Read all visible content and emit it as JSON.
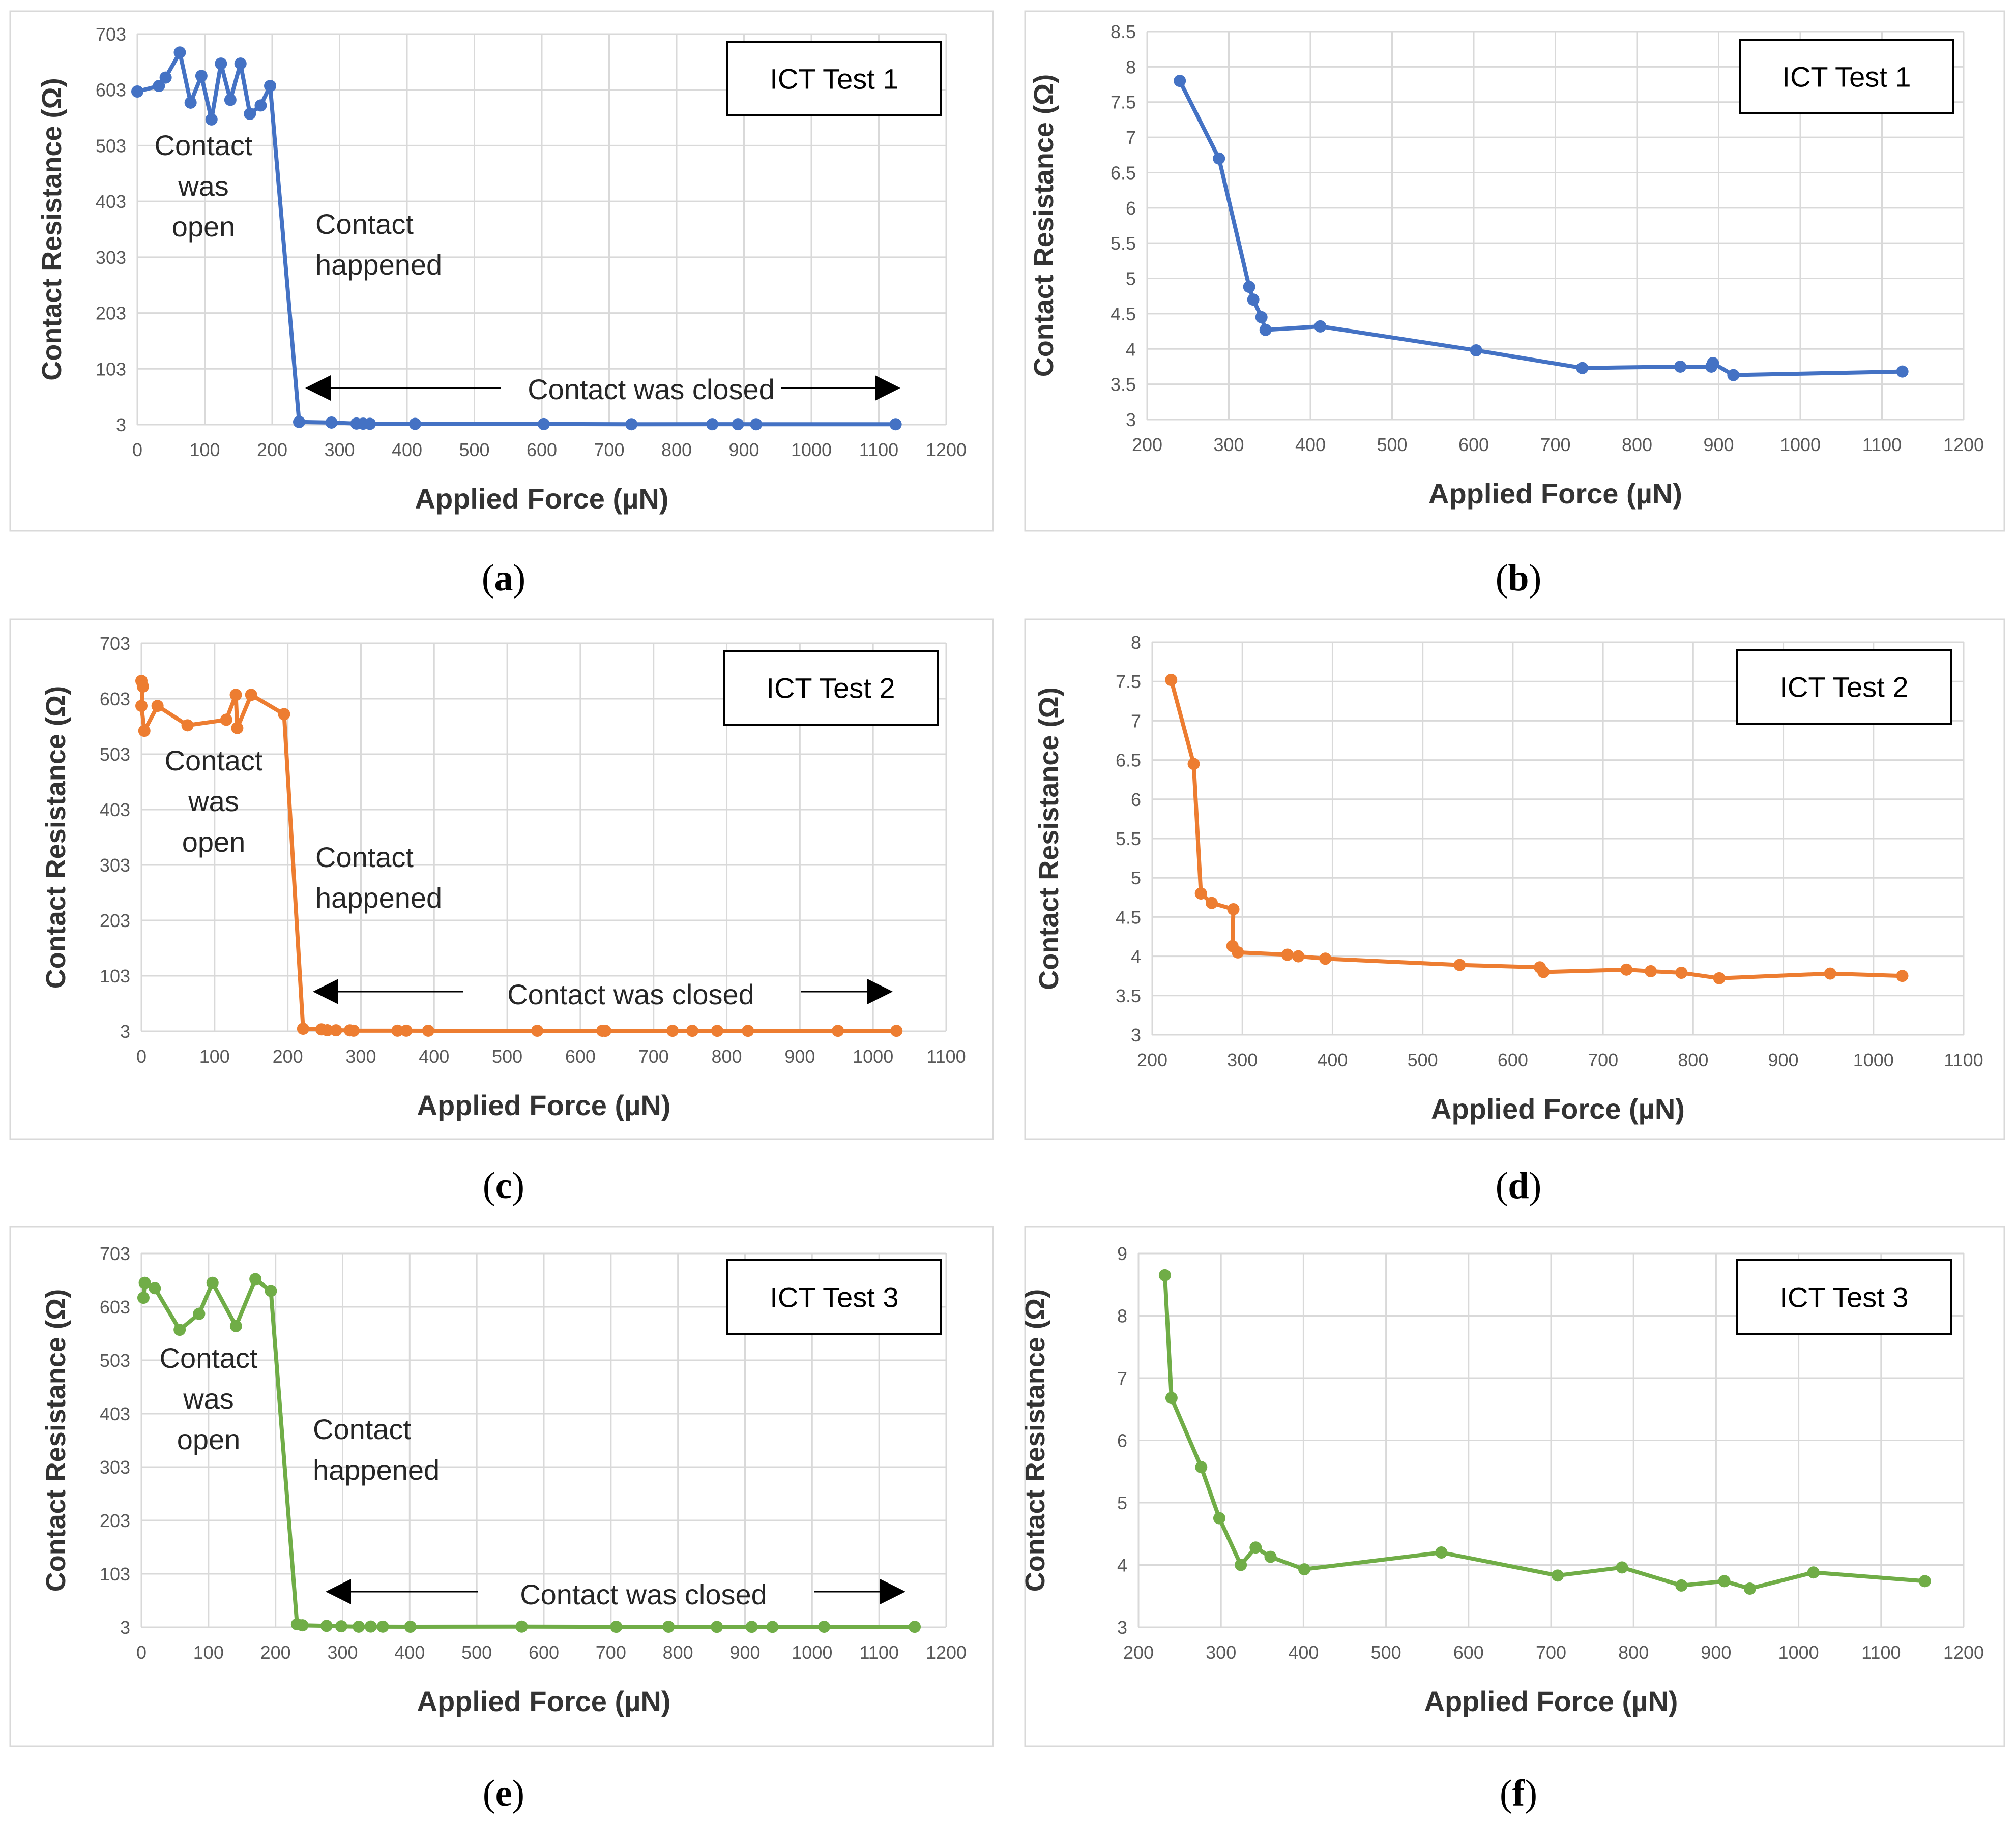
{
  "chart_data": [
    {
      "id": "a",
      "type": "line",
      "color": "#4472C4",
      "title": "ICT Test 1",
      "xlabel": "Applied Force (µN)",
      "ylabel": "Contact Resistance (Ω)",
      "xlim": [
        0,
        1200
      ],
      "ylim": [
        3,
        703
      ],
      "xticks": [
        0,
        100,
        200,
        300,
        400,
        500,
        600,
        700,
        800,
        900,
        1000,
        1100,
        1200
      ],
      "yticks": [
        3,
        103,
        203,
        303,
        403,
        503,
        603,
        703
      ],
      "annotations": {
        "open": [
          "Contact",
          "was",
          "open"
        ],
        "happened": [
          "Contact",
          "happened"
        ],
        "closed": "Contact was closed"
      },
      "x": [
        0,
        32,
        42,
        63,
        79,
        95,
        110,
        124,
        138,
        153,
        167,
        183,
        197,
        240,
        288,
        325,
        335,
        345,
        412,
        603,
        733,
        853,
        891,
        918,
        1125
      ],
      "y": [
        600,
        610,
        625,
        670,
        580,
        628,
        550,
        650,
        585,
        650,
        560,
        575,
        610,
        7.8,
        6.7,
        4.88,
        4.7,
        4.45,
        4.32,
        3.98,
        3.73,
        3.75,
        3.75,
        3.63,
        3.68
      ]
    },
    {
      "id": "b",
      "type": "line",
      "color": "#4472C4",
      "title": "ICT Test 1",
      "xlabel": "Applied Force (µN)",
      "ylabel": "Contact Resistance (Ω)",
      "xlim": [
        200,
        1200
      ],
      "ylim": [
        3,
        8.5
      ],
      "xticks": [
        200,
        300,
        400,
        500,
        600,
        700,
        800,
        900,
        1000,
        1100,
        1200
      ],
      "yticks": [
        3,
        3.5,
        4,
        4.5,
        5,
        5.5,
        6,
        6.5,
        7,
        7.5,
        8,
        8.5
      ],
      "x": [
        240,
        288,
        325,
        330,
        340,
        345,
        412,
        603,
        733,
        853,
        891,
        893,
        918,
        1125
      ],
      "y": [
        7.8,
        6.7,
        4.88,
        4.7,
        4.45,
        4.27,
        4.32,
        3.98,
        3.73,
        3.75,
        3.75,
        3.8,
        3.63,
        3.68
      ]
    },
    {
      "id": "c",
      "type": "line",
      "color": "#ED7D31",
      "title": "ICT Test 2",
      "xlabel": "Applied Force (µN)",
      "ylabel": "Contact Resistance (Ω)",
      "xlim": [
        0,
        1100
      ],
      "ylim": [
        3,
        703
      ],
      "xticks": [
        0,
        100,
        200,
        300,
        400,
        500,
        600,
        700,
        800,
        900,
        1000,
        1100
      ],
      "yticks": [
        3,
        103,
        203,
        303,
        403,
        503,
        603,
        703
      ],
      "annotations": {
        "open": [
          "Contact",
          "was",
          "open"
        ],
        "happened": [
          "Contact",
          "happened"
        ],
        "closed": "Contact was closed"
      },
      "x": [
        0,
        2,
        0,
        4,
        22,
        63,
        116,
        129,
        131,
        150,
        195,
        221,
        246,
        254,
        266,
        285,
        290,
        350,
        362,
        392,
        541,
        630,
        634,
        726,
        753,
        787,
        829,
        952,
        1032
      ],
      "y": [
        635,
        625,
        590,
        545,
        590,
        555,
        565,
        610,
        550,
        610,
        575,
        7.5,
        6.45,
        4.8,
        4.68,
        4.6,
        4.05,
        4.02,
        4.0,
        3.97,
        3.88,
        3.85,
        3.8,
        3.82,
        3.8,
        3.78,
        3.72,
        3.78,
        3.75
      ]
    },
    {
      "id": "d",
      "type": "line",
      "color": "#ED7D31",
      "title": "ICT Test 2",
      "xlabel": "Applied Force (µN)",
      "ylabel": "Contact Resistance (Ω)",
      "xlim": [
        200,
        1100
      ],
      "ylim": [
        3,
        8
      ],
      "xticks": [
        200,
        300,
        400,
        500,
        600,
        700,
        800,
        900,
        1000,
        1100
      ],
      "yticks": [
        3,
        3.5,
        4,
        4.5,
        5,
        5.5,
        6,
        6.5,
        7,
        7.5,
        8
      ],
      "x": [
        221,
        246,
        254,
        266,
        290,
        289,
        295,
        350,
        362,
        392,
        541,
        630,
        634,
        726,
        753,
        787,
        829,
        952,
        1032
      ],
      "y": [
        7.52,
        6.45,
        4.8,
        4.68,
        4.6,
        4.13,
        4.05,
        4.02,
        4.0,
        3.97,
        3.89,
        3.86,
        3.8,
        3.83,
        3.81,
        3.79,
        3.72,
        3.78,
        3.75
      ]
    },
    {
      "id": "e",
      "type": "line",
      "color": "#70AD47",
      "title": "ICT Test 3",
      "xlabel": "Applied Force (µN)",
      "ylabel": "Contact Resistance (Ω)",
      "xlim": [
        0,
        1200
      ],
      "ylim": [
        3,
        703
      ],
      "xticks": [
        0,
        100,
        200,
        300,
        400,
        500,
        600,
        700,
        800,
        900,
        1000,
        1100,
        1200
      ],
      "yticks": [
        3,
        103,
        203,
        303,
        403,
        503,
        603,
        703
      ],
      "annotations": {
        "open": [
          "Contact",
          "was",
          "open"
        ],
        "happened": [
          "Contact",
          "happened"
        ],
        "closed": "Contact was closed"
      },
      "x": [
        3,
        5,
        20,
        57,
        86,
        106,
        141,
        170,
        193,
        232,
        240,
        276,
        298,
        324,
        342,
        360,
        401,
        567,
        708,
        786,
        858,
        910,
        941,
        1018,
        1153
      ],
      "y": [
        620,
        648,
        638,
        560,
        590,
        648,
        567,
        655,
        633,
        8.65,
        6.68,
        5.57,
        4.75,
        4.0,
        4.28,
        4.13,
        3.93,
        4.2,
        3.83,
        3.96,
        3.67,
        3.74,
        3.62,
        3.88,
        3.74
      ]
    },
    {
      "id": "f",
      "type": "line",
      "color": "#70AD47",
      "title": "ICT Test 3",
      "xlabel": "Applied Force (µN)",
      "ylabel": "Contact Resistance (Ω)",
      "xlim": [
        200,
        1200
      ],
      "ylim": [
        3,
        9
      ],
      "xticks": [
        200,
        300,
        400,
        500,
        600,
        700,
        800,
        900,
        1000,
        1100,
        1200
      ],
      "yticks": [
        3,
        4,
        5,
        6,
        7,
        8,
        9
      ],
      "x": [
        232,
        240,
        276,
        298,
        324,
        342,
        360,
        401,
        567,
        708,
        786,
        858,
        910,
        941,
        1018,
        1153
      ],
      "y": [
        8.65,
        6.68,
        5.57,
        4.75,
        4.0,
        4.28,
        4.13,
        3.93,
        4.2,
        3.83,
        3.96,
        3.67,
        3.74,
        3.62,
        3.88,
        3.74
      ]
    }
  ],
  "captions": [
    "a",
    "b",
    "c",
    "d",
    "e",
    "f"
  ]
}
